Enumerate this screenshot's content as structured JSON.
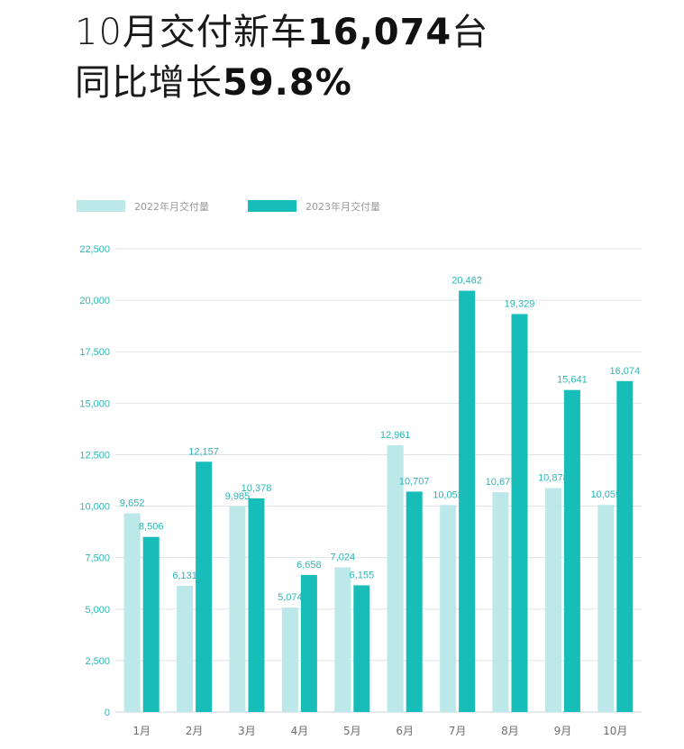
{
  "headline": {
    "line1_prefix": "10月交付新车",
    "line1_number": "16,074",
    "line1_suffix": "台",
    "line2_prefix": "同比增长",
    "line2_number": "59.8%"
  },
  "colors": {
    "series_2022": "#bde8ea",
    "series_2023": "#17bdb9",
    "label_text": "#2bb7b4"
  },
  "chart_data": {
    "type": "bar",
    "categories": [
      "1月",
      "2月",
      "3月",
      "4月",
      "5月",
      "6月",
      "7月",
      "8月",
      "9月",
      "10月"
    ],
    "series": [
      {
        "name": "2022年月交付量",
        "values": [
          9652,
          6131,
          9985,
          5074,
          7024,
          12961,
          10052,
          10677,
          10878,
          10059
        ],
        "labels": [
          "9,652",
          "6,131",
          "9,985",
          "5,074",
          "7,024",
          "12,961",
          "10,052",
          "10,677",
          "10,878",
          "10,059"
        ]
      },
      {
        "name": "2023年月交付量",
        "values": [
          8506,
          12157,
          10378,
          6658,
          6155,
          10707,
          20462,
          19329,
          15641,
          16074
        ],
        "labels": [
          "8,506",
          "12,157",
          "10,378",
          "6,658",
          "6,155",
          "10,707",
          "20,462",
          "19,329",
          "15,641",
          "16,074"
        ]
      }
    ],
    "ylim": [
      0,
      22500
    ],
    "yticks": [
      "0",
      "2,500",
      "5,000",
      "7,500",
      "10,000",
      "12,500",
      "15,000",
      "17,500",
      "20,000",
      "22,500"
    ],
    "ytick_values": [
      0,
      2500,
      5000,
      7500,
      10000,
      12500,
      15000,
      17500,
      20000,
      22500
    ],
    "grid": true,
    "legend_position": "top-left"
  }
}
